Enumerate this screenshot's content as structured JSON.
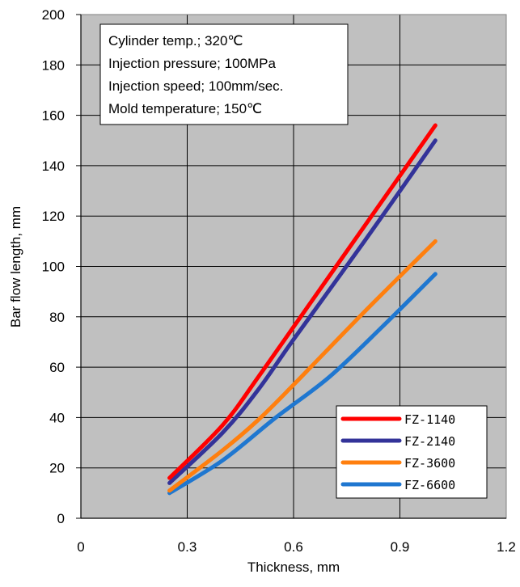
{
  "chart_data": {
    "type": "line",
    "title": "",
    "xlabel": "Thickness, mm",
    "ylabel": "Bar flow length, mm",
    "xlim": [
      0,
      1.2
    ],
    "ylim": [
      0,
      200
    ],
    "x_ticks": [
      "0",
      "0.3",
      "0.6",
      "0.9",
      "1.2"
    ],
    "y_ticks": [
      "0",
      "20",
      "40",
      "60",
      "80",
      "100",
      "120",
      "140",
      "160",
      "180",
      "200"
    ],
    "grid": true,
    "plot_background": "#c0c0c0",
    "legend_position": "bottom-right",
    "annotation_lines": [
      "Cylinder temp.; 320℃",
      "Injection pressure; 100MPa",
      "Injection speed; 100mm/sec.",
      "Mold temperature; 150℃"
    ],
    "series": [
      {
        "name": "FZ-1140",
        "color": "#ff0000",
        "points": [
          [
            0.25,
            16
          ],
          [
            0.4,
            37
          ],
          [
            0.5,
            56
          ],
          [
            0.6,
            76
          ],
          [
            0.8,
            116
          ],
          [
            1.0,
            156
          ]
        ]
      },
      {
        "name": "FZ-2140",
        "color": "#333399",
        "points": [
          [
            0.25,
            14
          ],
          [
            0.4,
            34
          ],
          [
            0.5,
            51
          ],
          [
            0.6,
            71
          ],
          [
            0.8,
            110
          ],
          [
            1.0,
            150
          ]
        ]
      },
      {
        "name": "FZ-3600",
        "color": "#ff7f0e",
        "points": [
          [
            0.25,
            11
          ],
          [
            0.4,
            27
          ],
          [
            0.5,
            39
          ],
          [
            0.6,
            53
          ],
          [
            0.8,
            82
          ],
          [
            1.0,
            110
          ]
        ]
      },
      {
        "name": "FZ-6600",
        "color": "#1f77d0",
        "points": [
          [
            0.25,
            10
          ],
          [
            0.4,
            23
          ],
          [
            0.55,
            40
          ],
          [
            0.7,
            56
          ],
          [
            0.85,
            76
          ],
          [
            1.0,
            97
          ]
        ]
      }
    ]
  }
}
